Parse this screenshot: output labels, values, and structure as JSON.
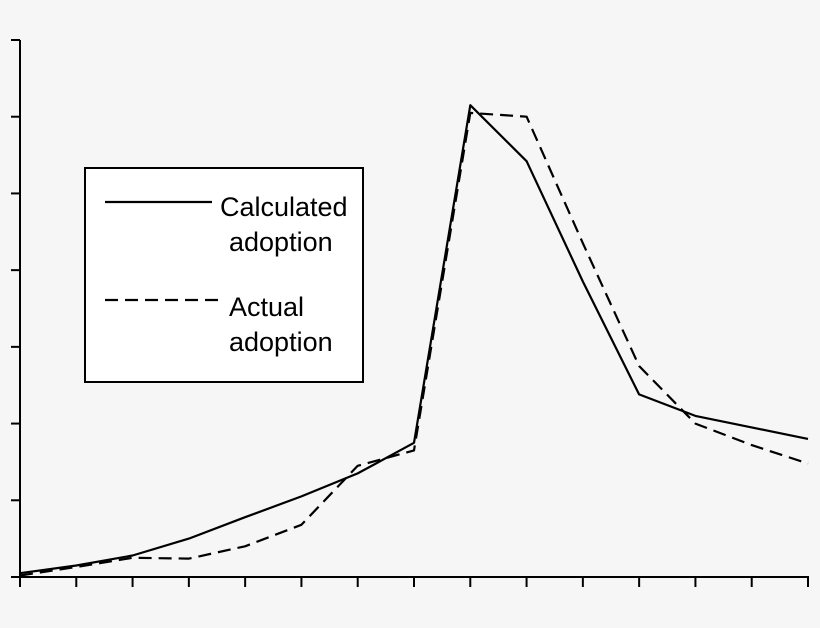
{
  "chart_data": {
    "type": "line",
    "title": "",
    "xlabel": "",
    "ylabel": "",
    "x": [
      0,
      1,
      2,
      3,
      4,
      5,
      6,
      7,
      8,
      9,
      10,
      11,
      12,
      13,
      14
    ],
    "xlim": [
      0,
      14
    ],
    "ylim": [
      0,
      7
    ],
    "x_tick_count": 15,
    "y_tick_count": 8,
    "grid": false,
    "legend_position": "left",
    "series": [
      {
        "name": "Calculated adoption",
        "style": "solid",
        "color": "#000000",
        "values": [
          0.05,
          0.15,
          0.28,
          0.5,
          0.78,
          1.05,
          1.35,
          1.75,
          6.15,
          5.42,
          3.85,
          2.38,
          2.1,
          1.95,
          1.8
        ]
      },
      {
        "name": "Actual adoption",
        "style": "dashed",
        "color": "#000000",
        "values": [
          0.02,
          0.13,
          0.25,
          0.24,
          0.4,
          0.68,
          1.45,
          1.65,
          6.05,
          6.0,
          4.35,
          2.75,
          2.0,
          1.72,
          1.48
        ]
      }
    ]
  },
  "legend": {
    "items": [
      {
        "line1": "Calculated",
        "line2": "adoption"
      },
      {
        "line1": "Actual",
        "line2": "adoption"
      }
    ]
  }
}
